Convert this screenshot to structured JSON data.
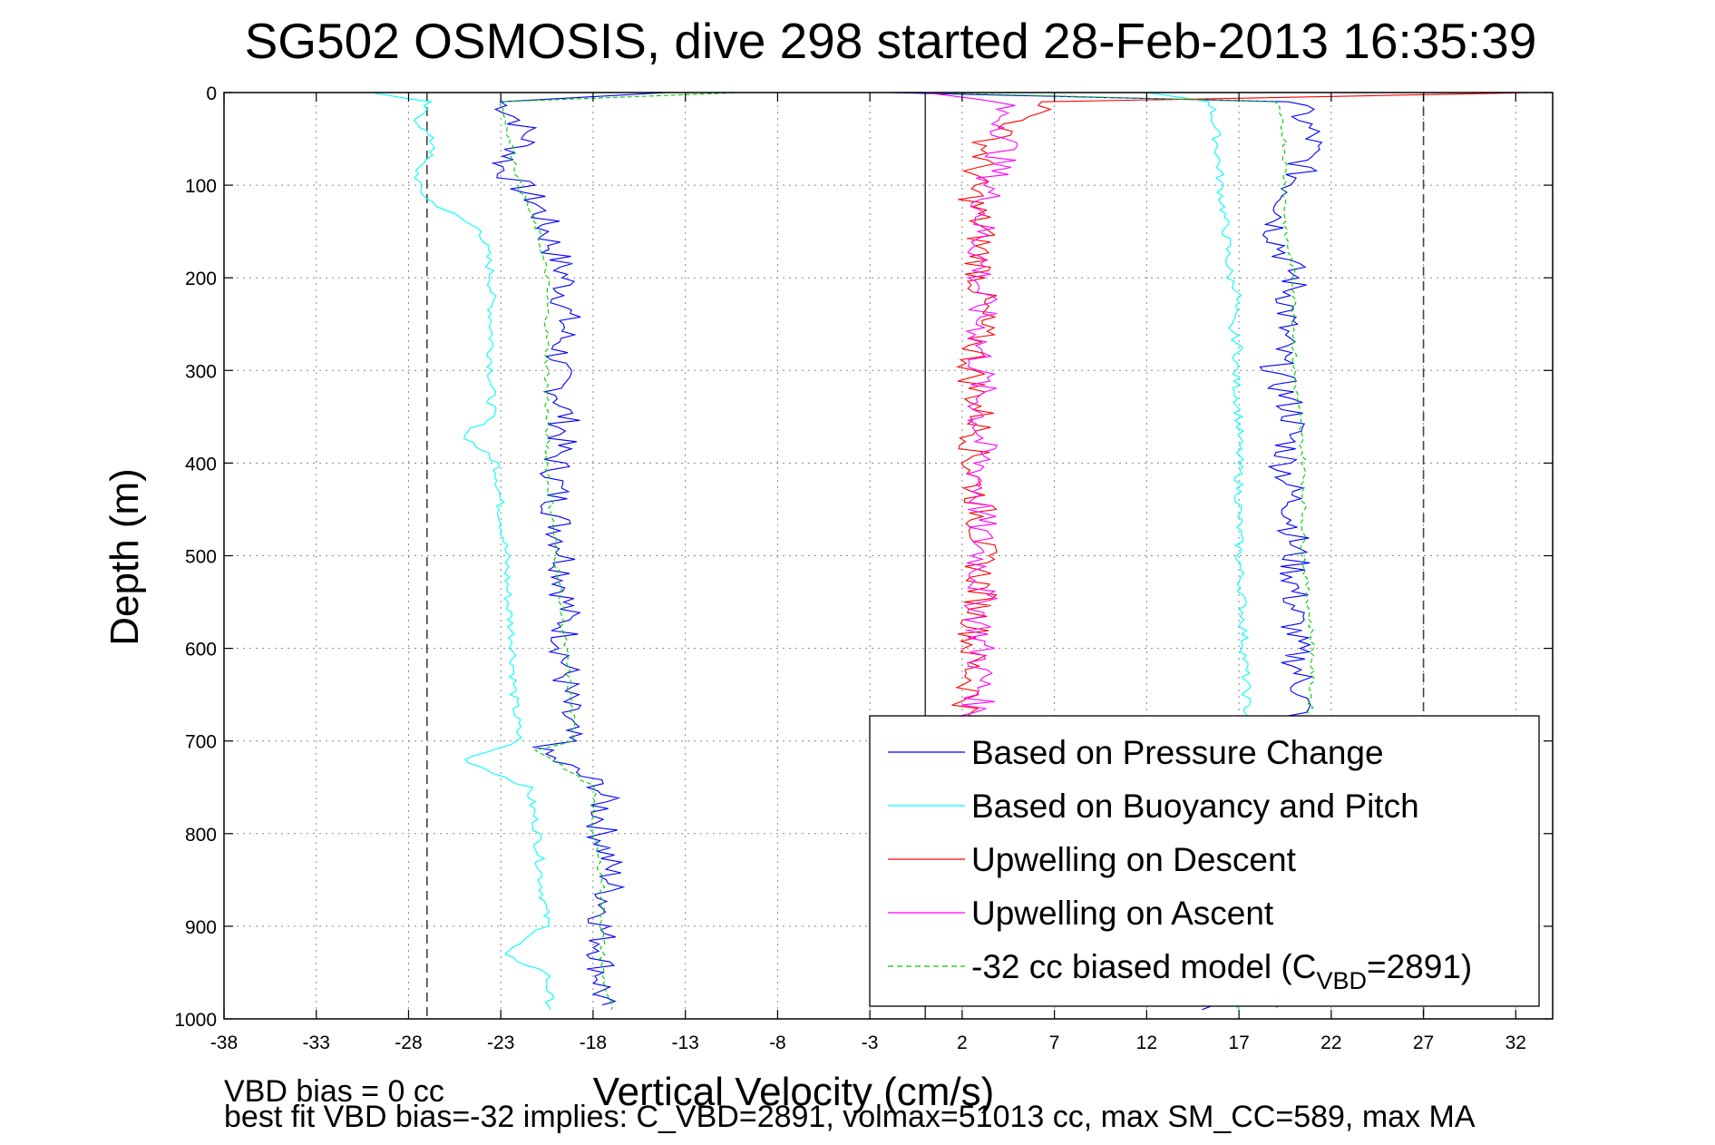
{
  "chart_data": {
    "type": "line",
    "title": "SG502 OSMOSIS, dive 298 started 28-Feb-2013 16:35:39",
    "xlabel": "Vertical Velocity (cm/s)",
    "ylabel": "Depth (m)",
    "xlim": [
      -38,
      34
    ],
    "ylim": [
      0,
      1000
    ],
    "y_reversed": true,
    "x_ticks": [
      -38,
      -33,
      -28,
      -23,
      -18,
      -13,
      -8,
      -3,
      2,
      7,
      12,
      17,
      22,
      27,
      32
    ],
    "y_ticks": [
      0,
      100,
      200,
      300,
      400,
      500,
      600,
      700,
      800,
      900,
      1000
    ],
    "grid": true,
    "reference_lines": {
      "solid_vertical_x": 0,
      "dashed_vertical_x": [
        -27,
        27
      ]
    },
    "legend_position": "bottom-right",
    "legend": [
      {
        "label": "Based on Pressure Change",
        "color": "#0000ff",
        "style": "solid"
      },
      {
        "label": "Based on Buoyancy and Pitch",
        "color": "#00ffff",
        "style": "solid"
      },
      {
        "label": "Upwelling on Descent",
        "color": "#ff0000",
        "style": "solid"
      },
      {
        "label": "Upwelling on Ascent",
        "color": "#ff00ff",
        "style": "solid"
      },
      {
        "label_pre": "-32 cc biased model (C",
        "label_sub": "VBD",
        "label_post": "=2891)",
        "color": "#00cc00",
        "style": "dashed"
      }
    ],
    "series": [
      {
        "name": "Based on Pressure Change (descent)",
        "color": "#0000ff",
        "depth": [
          0,
          10,
          30,
          50,
          80,
          100,
          120,
          150,
          200,
          250,
          300,
          350,
          400,
          450,
          500,
          550,
          600,
          650,
          700,
          710,
          750,
          800,
          850,
          900,
          950,
          985
        ],
        "values": [
          -14,
          -23,
          -22,
          -21.5,
          -23,
          -22,
          -21,
          -20.5,
          -19.5,
          -19.5,
          -20,
          -19.5,
          -20,
          -20,
          -19.5,
          -19.5,
          -19.5,
          -19.5,
          -19.5,
          -21,
          -17.5,
          -17.5,
          -17,
          -17.5,
          -17.5,
          -17.5
        ]
      },
      {
        "name": "Based on Buoyancy and Pitch (descent)",
        "color": "#00ffff",
        "depth": [
          0,
          10,
          30,
          60,
          80,
          100,
          115,
          150,
          200,
          250,
          300,
          350,
          370,
          400,
          450,
          500,
          550,
          600,
          650,
          700,
          720,
          750,
          800,
          850,
          900,
          930,
          950,
          990
        ],
        "values": [
          -30,
          -27,
          -27.5,
          -26.5,
          -27.5,
          -27.5,
          -27,
          -24,
          -23.5,
          -23.5,
          -23.5,
          -23.5,
          -25,
          -23.2,
          -23,
          -22.7,
          -22.6,
          -22.3,
          -22.3,
          -22,
          -25,
          -21.5,
          -21,
          -20.8,
          -20.5,
          -23,
          -20.5,
          -20.3
        ]
      },
      {
        "name": "Based on Pressure Change (ascent)",
        "color": "#0000ff",
        "depth": [
          0,
          10,
          50,
          100,
          150,
          200,
          250,
          300,
          350,
          400,
          450,
          500,
          550,
          600,
          650,
          700,
          750,
          800,
          850,
          900,
          950,
          990
        ],
        "values": [
          -2,
          20,
          21,
          20,
          19,
          20,
          19.5,
          19,
          20,
          19.5,
          20,
          20,
          20,
          20,
          20.5,
          20,
          20,
          20,
          20,
          20,
          20,
          15
        ]
      },
      {
        "name": "Based on Buoyancy and Pitch (ascent)",
        "color": "#00ffff",
        "depth": [
          0,
          10,
          50,
          100,
          150,
          200,
          215,
          250,
          275,
          300,
          350,
          400,
          450,
          500,
          550,
          600,
          650,
          700,
          750,
          800,
          850,
          900,
          950,
          990
        ],
        "values": [
          12,
          15.5,
          15.8,
          16,
          16.3,
          16.5,
          17,
          16.5,
          17,
          16.8,
          17,
          17,
          17,
          17,
          17.2,
          17.3,
          17.4,
          17.5,
          17.5,
          17.5,
          17.5,
          17.5,
          17.5,
          17
        ]
      },
      {
        "name": "Upwelling on Descent",
        "color": "#ff0000",
        "depth": [
          0,
          10,
          50,
          100,
          150,
          200,
          250,
          300,
          350,
          400,
          450,
          500,
          550,
          600,
          650,
          680
        ],
        "values": [
          33,
          7,
          3.5,
          2.5,
          3,
          3,
          3,
          2.5,
          3,
          2.5,
          3,
          3,
          3,
          2.5,
          2.5,
          2
        ]
      },
      {
        "name": "Upwelling on Ascent",
        "color": "#ff00ff",
        "depth": [
          0,
          10,
          50,
          100,
          150,
          200,
          250,
          300,
          350,
          400,
          450,
          500,
          550,
          600,
          650,
          680
        ],
        "values": [
          0,
          4,
          4.5,
          3.5,
          3,
          3,
          3,
          3,
          3,
          3,
          3,
          3,
          3,
          3,
          3,
          2.5
        ]
      },
      {
        "name": "-32 cc biased model (descent)",
        "color": "#00cc00",
        "dashed": true,
        "depth": [
          0,
          10,
          50,
          100,
          150,
          200,
          300,
          400,
          500,
          600,
          700,
          710,
          750,
          800,
          850,
          900,
          950,
          990
        ],
        "values": [
          -10,
          -23,
          -22.5,
          -22,
          -21,
          -20.5,
          -20.5,
          -20.5,
          -20,
          -19.5,
          -19,
          -21,
          -18,
          -18,
          -17.5,
          -17.5,
          -17.5,
          -17
        ]
      },
      {
        "name": "-32 cc biased model (ascent)",
        "color": "#00cc00",
        "dashed": true,
        "depth": [
          0,
          10,
          50,
          100,
          150,
          200,
          300,
          400,
          500,
          600,
          700,
          800,
          900,
          990
        ],
        "values": [
          0,
          19,
          19.5,
          19.5,
          19.5,
          20,
          20,
          20.5,
          20.5,
          21,
          20.8,
          20.8,
          20.5,
          19
        ]
      }
    ]
  },
  "footer": {
    "line1": "VBD bias = 0 cc",
    "line2": "best fit VBD bias=-32 implies: C_VBD=2891, volmax=51013 cc, max SM_CC=589, max MA"
  }
}
